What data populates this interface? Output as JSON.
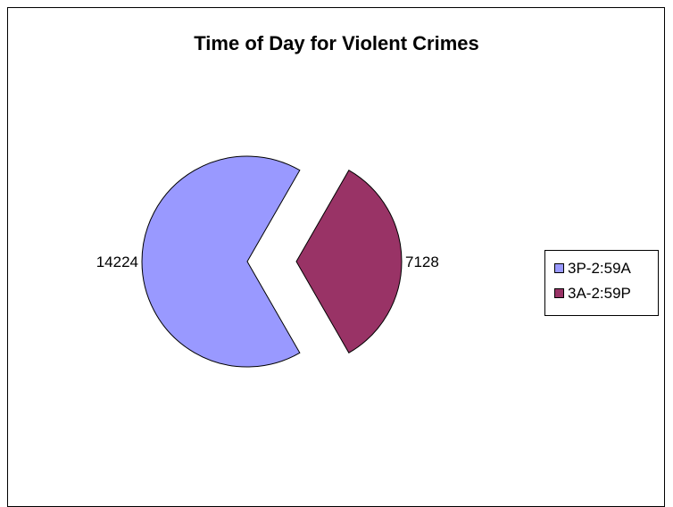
{
  "chart_data": {
    "type": "pie",
    "title": "Time of Day for Violent Crimes",
    "categories": [
      "3P-2:59A",
      "3A-2:59P"
    ],
    "values": [
      14224,
      7128
    ],
    "colors": [
      "#9999FF",
      "#993366"
    ],
    "data_labels": [
      "14224",
      "7128"
    ],
    "exploded": true,
    "legend": "right"
  }
}
